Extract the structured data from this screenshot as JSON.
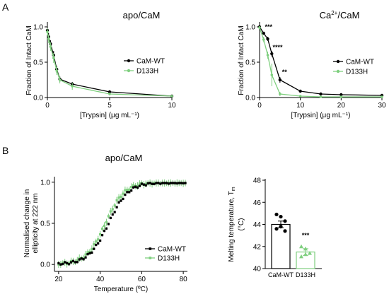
{
  "panel_labels": {
    "a": "A",
    "b": "B"
  },
  "colors": {
    "wt": "#000000",
    "mut": "#7fcf7f"
  },
  "chart_data": [
    {
      "type": "line",
      "title": "apo/CaM",
      "xlabel": "[Trypsin] (μg mL⁻¹)",
      "ylabel": "Fraction of Intact CaM",
      "xlim": [
        0,
        10
      ],
      "ylim": [
        0,
        1.05
      ],
      "xticks": [
        0,
        5,
        10
      ],
      "yticks": [
        0.0,
        0.5,
        1.0
      ],
      "ytick_labels": [
        "0.0",
        "0.5",
        "1.0"
      ],
      "legend": "right",
      "series": [
        {
          "name": "CaM-WT",
          "color": "#000000",
          "points": [
            [
              0,
              0.95
            ],
            [
              0.1,
              0.86
            ],
            [
              0.25,
              0.76
            ],
            [
              0.5,
              0.6
            ],
            [
              0.75,
              0.4
            ],
            [
              1,
              0.26
            ],
            [
              2,
              0.19
            ],
            [
              5,
              0.08
            ],
            [
              10,
              0.02
            ]
          ],
          "err": [
            0.04,
            0.05,
            0.05,
            0.06,
            0.05,
            0.04,
            0.03,
            0.02,
            0.01
          ]
        },
        {
          "name": "D133H",
          "color": "#7fcf7f",
          "points": [
            [
              0,
              0.93
            ],
            [
              0.1,
              0.83
            ],
            [
              0.25,
              0.72
            ],
            [
              0.5,
              0.56
            ],
            [
              0.75,
              0.38
            ],
            [
              1,
              0.25
            ],
            [
              2,
              0.16
            ],
            [
              5,
              0.05
            ],
            [
              10,
              0.02
            ]
          ],
          "err": [
            0.05,
            0.06,
            0.06,
            0.07,
            0.06,
            0.05,
            0.05,
            0.02,
            0.01
          ]
        }
      ]
    },
    {
      "type": "line",
      "title": "Ca2+/CaM",
      "xlabel": "[Trypsin] (μg mL⁻¹)",
      "ylabel": "Fraction of Intact CaM",
      "xlim": [
        0,
        30
      ],
      "ylim": [
        0,
        1.05
      ],
      "xticks": [
        0,
        10,
        20,
        30
      ],
      "yticks": [
        0.0,
        0.5,
        1.0
      ],
      "ytick_labels": [
        "0.0",
        "0.5",
        "1.0"
      ],
      "legend": "right",
      "series": [
        {
          "name": "CaM-WT",
          "color": "#000000",
          "points": [
            [
              0,
              1.0
            ],
            [
              1,
              0.91
            ],
            [
              2,
              0.83
            ],
            [
              3,
              0.62
            ],
            [
              5,
              0.25
            ],
            [
              10,
              0.09
            ],
            [
              15,
              0.05
            ],
            [
              20,
              0.04
            ],
            [
              30,
              0.03
            ]
          ],
          "err": [
            0.01,
            0.02,
            0.03,
            0.04,
            0.04,
            0.02,
            0.01,
            0.01,
            0.01
          ]
        },
        {
          "name": "D133H",
          "color": "#7fcf7f",
          "points": [
            [
              0,
              0.99
            ],
            [
              1,
              0.82
            ],
            [
              2,
              0.6
            ],
            [
              3,
              0.32
            ],
            [
              5,
              0.05
            ],
            [
              10,
              0.02
            ],
            [
              15,
              0.01
            ],
            [
              20,
              0.01
            ],
            [
              30,
              0.01
            ]
          ],
          "err": [
            0.02,
            0.04,
            0.05,
            0.16,
            0.03,
            0.01,
            0.01,
            0.01,
            0.01
          ]
        }
      ],
      "annotations": [
        {
          "text": "***",
          "x": 1.3,
          "y": 0.97
        },
        {
          "text": "****",
          "x": 3.2,
          "y": 0.68
        },
        {
          "text": "**",
          "x": 5.5,
          "y": 0.33
        }
      ]
    },
    {
      "type": "line",
      "title": "apo/CaM",
      "xlabel": "Temperature (ºC)",
      "ylabel": "Normalised change in ellipticity at 222 nm",
      "xlim": [
        18,
        82
      ],
      "ylim": [
        -0.05,
        1.05
      ],
      "xticks": [
        20,
        40,
        60,
        80
      ],
      "yticks": [
        0.0,
        0.5,
        1.0
      ],
      "ytick_labels": [
        "0.0",
        "0.5",
        "1.0"
      ],
      "legend": "bottom-right",
      "series": [
        {
          "name": "CaM-WT",
          "color": "#000000",
          "midpoint": 44,
          "slope": 4.8
        },
        {
          "name": "D133H",
          "color": "#7fcf7f",
          "midpoint": 42.5,
          "slope": 4.6
        }
      ]
    },
    {
      "type": "bar",
      "ylabel": "Melting temperature, Tm (°C)",
      "ylim": [
        40,
        48
      ],
      "yticks": [
        40,
        42,
        44,
        46,
        48
      ],
      "categories": [
        "CaM-WT",
        "D133H"
      ],
      "values": [
        44.0,
        41.5
      ],
      "errors": [
        0.3,
        0.3
      ],
      "points": [
        [
          44.9,
          44.7,
          44.3,
          43.6,
          43.8,
          43.4
        ],
        [
          42.0,
          41.8,
          41.4,
          41.1,
          41.3
        ]
      ],
      "annotations": [
        {
          "text": "***",
          "category": "D133H",
          "y": 43.0
        }
      ]
    }
  ]
}
